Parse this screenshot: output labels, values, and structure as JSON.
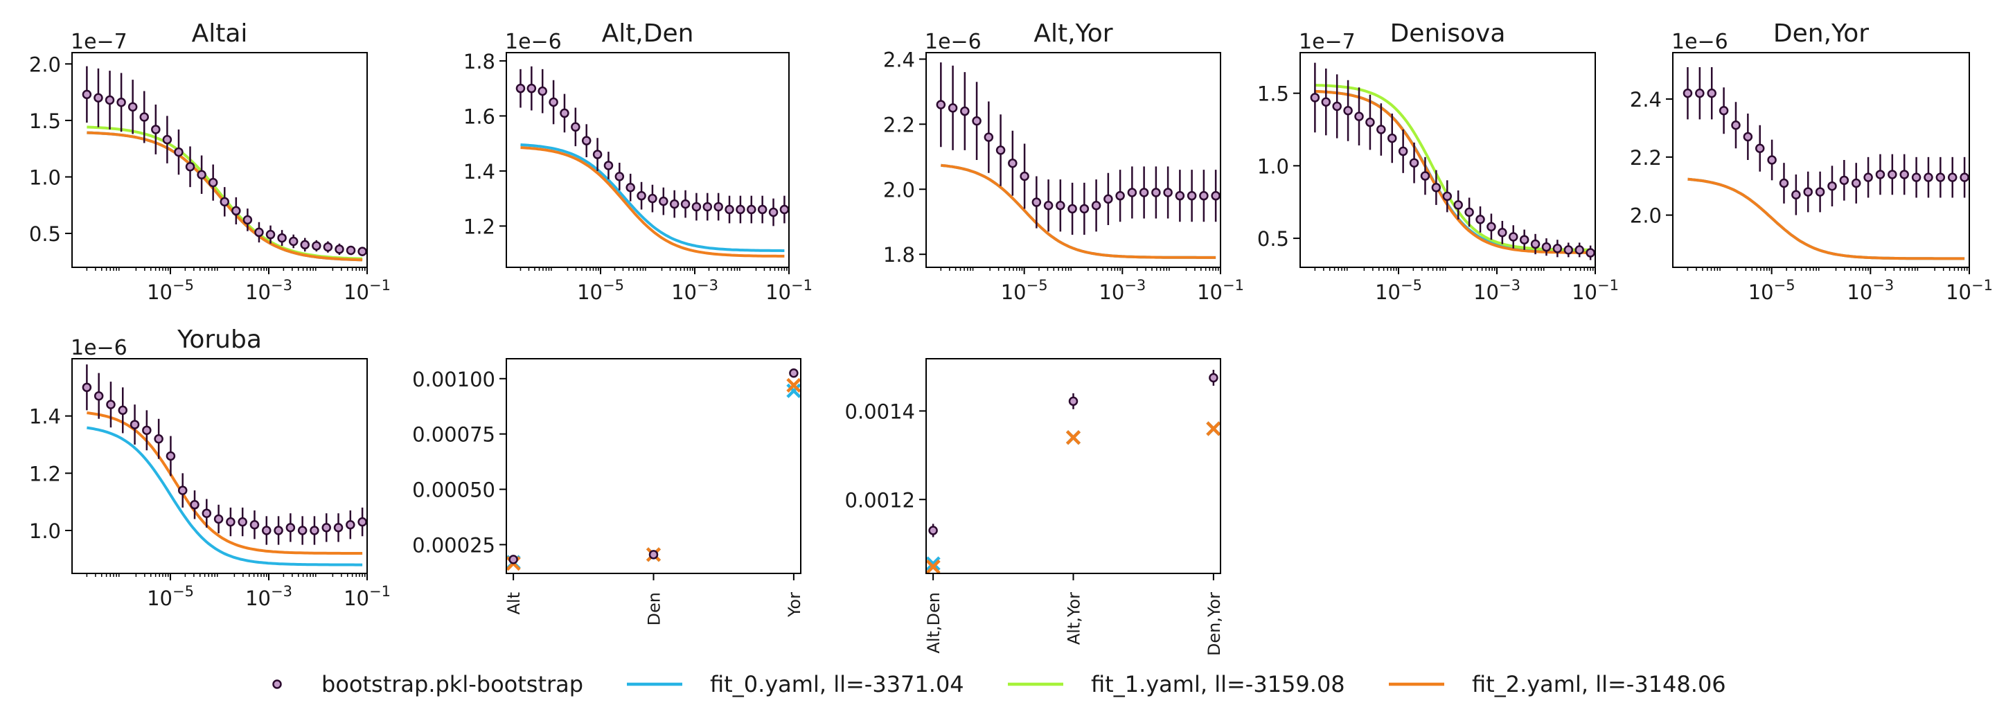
{
  "colors": {
    "data_edge": "#2b0a2e",
    "data_fill": "#c49bc9",
    "fit_0": "#28b4e4",
    "fit_1": "#a6f23a",
    "fit_2": "#f07f1e"
  },
  "legend": {
    "placement": "bottom-center",
    "items": [
      {
        "key": "data",
        "label": "bootstrap.pkl-bootstrap"
      },
      {
        "key": "fit_0",
        "label": "fit_0.yaml, ll=-3371.04"
      },
      {
        "key": "fit_1",
        "label": "fit_1.yaml, ll=-3159.08"
      },
      {
        "key": "fit_2",
        "label": "fit_2.yaml, ll=-3148.06"
      }
    ]
  },
  "chart_data": [
    {
      "type": "line",
      "title": "Altai",
      "offset_label": "1e−7",
      "x_scale": "log",
      "xlim": [
        1e-07,
        0.1
      ],
      "ylim": [
        0.2,
        2.1
      ],
      "xticks": [
        {
          "v": 1e-05,
          "b": "10",
          "e": "−5"
        },
        {
          "v": 0.001,
          "b": "10",
          "e": "−3"
        },
        {
          "v": 0.1,
          "b": "10",
          "e": "−1"
        }
      ],
      "yticks": [
        {
          "v": 0.5,
          "label": "0.5"
        },
        {
          "v": 1.0,
          "label": "1.0"
        },
        {
          "v": 1.5,
          "label": "1.5"
        },
        {
          "v": 2.0,
          "label": "2.0"
        }
      ],
      "points": {
        "y": [
          1.73,
          1.7,
          1.68,
          1.66,
          1.62,
          1.53,
          1.42,
          1.33,
          1.22,
          1.09,
          1.02,
          0.95,
          0.78,
          0.7,
          0.62,
          0.51,
          0.49,
          0.46,
          0.43,
          0.4,
          0.39,
          0.38,
          0.36,
          0.35,
          0.34
        ],
        "err": [
          0.25,
          0.26,
          0.26,
          0.26,
          0.24,
          0.23,
          0.22,
          0.21,
          0.2,
          0.18,
          0.17,
          0.16,
          0.13,
          0.12,
          0.1,
          0.09,
          0.08,
          0.07,
          0.06,
          0.06,
          0.05,
          0.05,
          0.05,
          0.04,
          0.04
        ]
      },
      "curves": [
        {
          "key": "fit_0",
          "top": 1.4,
          "bottom": 0.26,
          "mid_log": -4.0,
          "width": 0.55
        },
        {
          "key": "fit_1",
          "top": 1.45,
          "bottom": 0.27,
          "mid_log": -4.0,
          "width": 0.55
        },
        {
          "key": "fit_2",
          "top": 1.4,
          "bottom": 0.26,
          "mid_log": -4.0,
          "width": 0.55
        }
      ]
    },
    {
      "type": "line",
      "title": "Alt,Den",
      "offset_label": "1e−6",
      "x_scale": "log",
      "xlim": [
        1e-07,
        0.1
      ],
      "ylim": [
        1.05,
        1.83
      ],
      "xticks": [
        {
          "v": 1e-05,
          "b": "10",
          "e": "−5"
        },
        {
          "v": 0.001,
          "b": "10",
          "e": "−3"
        },
        {
          "v": 0.1,
          "b": "10",
          "e": "−1"
        }
      ],
      "yticks": [
        {
          "v": 1.2,
          "label": "1.2"
        },
        {
          "v": 1.4,
          "label": "1.4"
        },
        {
          "v": 1.6,
          "label": "1.6"
        },
        {
          "v": 1.8,
          "label": "1.8"
        }
      ],
      "points": {
        "y": [
          1.7,
          1.7,
          1.69,
          1.65,
          1.61,
          1.56,
          1.51,
          1.46,
          1.42,
          1.38,
          1.34,
          1.31,
          1.3,
          1.29,
          1.28,
          1.28,
          1.27,
          1.27,
          1.27,
          1.26,
          1.26,
          1.26,
          1.26,
          1.25,
          1.26
        ],
        "err": [
          0.07,
          0.08,
          0.08,
          0.08,
          0.07,
          0.07,
          0.06,
          0.06,
          0.05,
          0.05,
          0.05,
          0.05,
          0.05,
          0.05,
          0.05,
          0.05,
          0.05,
          0.05,
          0.05,
          0.05,
          0.05,
          0.05,
          0.05,
          0.05,
          0.05
        ]
      },
      "curves": [
        {
          "key": "fit_0",
          "top": 1.5,
          "bottom": 1.11,
          "mid_log": -4.5,
          "width": 0.5
        },
        {
          "key": "fit_2",
          "top": 1.49,
          "bottom": 1.09,
          "mid_log": -4.5,
          "width": 0.5
        }
      ]
    },
    {
      "type": "line",
      "title": "Alt,Yor",
      "offset_label": "1e−6",
      "x_scale": "log",
      "xlim": [
        1e-07,
        0.1
      ],
      "ylim": [
        1.76,
        2.42
      ],
      "xticks": [
        {
          "v": 1e-05,
          "b": "10",
          "e": "−5"
        },
        {
          "v": 0.001,
          "b": "10",
          "e": "−3"
        },
        {
          "v": 0.1,
          "b": "10",
          "e": "−1"
        }
      ],
      "yticks": [
        {
          "v": 1.8,
          "label": "1.8"
        },
        {
          "v": 2.0,
          "label": "2.0"
        },
        {
          "v": 2.2,
          "label": "2.2"
        },
        {
          "v": 2.4,
          "label": "2.4"
        }
      ],
      "points": {
        "y": [
          2.26,
          2.25,
          2.24,
          2.21,
          2.16,
          2.12,
          2.08,
          2.04,
          1.96,
          1.95,
          1.95,
          1.94,
          1.94,
          1.95,
          1.97,
          1.98,
          1.99,
          1.99,
          1.99,
          1.99,
          1.98,
          1.98,
          1.98,
          1.98
        ],
        "err": [
          0.13,
          0.13,
          0.12,
          0.12,
          0.11,
          0.11,
          0.1,
          0.1,
          0.08,
          0.08,
          0.08,
          0.08,
          0.08,
          0.08,
          0.08,
          0.08,
          0.08,
          0.08,
          0.08,
          0.08,
          0.08,
          0.08,
          0.08,
          0.08
        ]
      },
      "curves": [
        {
          "key": "fit_0",
          "top": 2.08,
          "bottom": 1.79,
          "mid_log": -5.0,
          "width": 0.45
        },
        {
          "key": "fit_2",
          "top": 2.08,
          "bottom": 1.79,
          "mid_log": -5.0,
          "width": 0.45
        }
      ]
    },
    {
      "type": "line",
      "title": "Denisova",
      "offset_label": "1e−7",
      "x_scale": "log",
      "xlim": [
        1e-07,
        0.1
      ],
      "ylim": [
        0.3,
        1.78
      ],
      "xticks": [
        {
          "v": 1e-05,
          "b": "10",
          "e": "−5"
        },
        {
          "v": 0.001,
          "b": "10",
          "e": "−3"
        },
        {
          "v": 0.1,
          "b": "10",
          "e": "−1"
        }
      ],
      "yticks": [
        {
          "v": 0.5,
          "label": "0.5"
        },
        {
          "v": 1.0,
          "label": "1.0"
        },
        {
          "v": 1.5,
          "label": "1.5"
        }
      ],
      "points": {
        "y": [
          1.47,
          1.44,
          1.41,
          1.38,
          1.34,
          1.3,
          1.25,
          1.19,
          1.1,
          1.02,
          0.93,
          0.85,
          0.79,
          0.73,
          0.68,
          0.63,
          0.58,
          0.54,
          0.51,
          0.49,
          0.46,
          0.44,
          0.43,
          0.42,
          0.42,
          0.4
        ],
        "err": [
          0.24,
          0.23,
          0.22,
          0.21,
          0.2,
          0.19,
          0.18,
          0.17,
          0.15,
          0.14,
          0.13,
          0.12,
          0.11,
          0.1,
          0.1,
          0.09,
          0.09,
          0.08,
          0.08,
          0.07,
          0.07,
          0.06,
          0.06,
          0.05,
          0.05,
          0.05
        ]
      },
      "curves": [
        {
          "key": "fit_0",
          "top": 1.52,
          "bottom": 0.41,
          "mid_log": -4.4,
          "width": 0.45
        },
        {
          "key": "fit_1",
          "top": 1.56,
          "bottom": 0.42,
          "mid_log": -4.3,
          "width": 0.43
        },
        {
          "key": "fit_2",
          "top": 1.52,
          "bottom": 0.4,
          "mid_log": -4.4,
          "width": 0.45
        }
      ]
    },
    {
      "type": "line",
      "title": "Den,Yor",
      "offset_label": "1e−6",
      "x_scale": "log",
      "xlim": [
        1e-07,
        0.1
      ],
      "ylim": [
        1.82,
        2.56
      ],
      "xticks": [
        {
          "v": 1e-05,
          "b": "10",
          "e": "−5"
        },
        {
          "v": 0.001,
          "b": "10",
          "e": "−3"
        },
        {
          "v": 0.1,
          "b": "10",
          "e": "−1"
        }
      ],
      "yticks": [
        {
          "v": 2.0,
          "label": "2.0"
        },
        {
          "v": 2.2,
          "label": "2.2"
        },
        {
          "v": 2.4,
          "label": "2.4"
        }
      ],
      "points": {
        "y": [
          2.42,
          2.42,
          2.42,
          2.36,
          2.31,
          2.27,
          2.23,
          2.19,
          2.11,
          2.07,
          2.08,
          2.08,
          2.1,
          2.12,
          2.11,
          2.13,
          2.14,
          2.14,
          2.14,
          2.13,
          2.13,
          2.13,
          2.13,
          2.13
        ],
        "err": [
          0.09,
          0.09,
          0.09,
          0.08,
          0.08,
          0.08,
          0.08,
          0.07,
          0.07,
          0.07,
          0.07,
          0.07,
          0.07,
          0.07,
          0.07,
          0.07,
          0.07,
          0.07,
          0.07,
          0.07,
          0.07,
          0.07,
          0.07,
          0.07
        ]
      },
      "curves": [
        {
          "key": "fit_0",
          "top": 2.13,
          "bottom": 1.85,
          "mid_log": -5.0,
          "width": 0.45
        },
        {
          "key": "fit_2",
          "top": 2.13,
          "bottom": 1.85,
          "mid_log": -5.0,
          "width": 0.45
        }
      ]
    },
    {
      "type": "line",
      "title": "Yoruba",
      "offset_label": "1e−6",
      "x_scale": "log",
      "xlim": [
        1e-07,
        0.1
      ],
      "ylim": [
        0.85,
        1.6
      ],
      "xticks": [
        {
          "v": 1e-05,
          "b": "10",
          "e": "−5"
        },
        {
          "v": 0.001,
          "b": "10",
          "e": "−3"
        },
        {
          "v": 0.1,
          "b": "10",
          "e": "−1"
        }
      ],
      "yticks": [
        {
          "v": 1.0,
          "label": "1.0"
        },
        {
          "v": 1.2,
          "label": "1.2"
        },
        {
          "v": 1.4,
          "label": "1.4"
        }
      ],
      "points": {
        "y": [
          1.5,
          1.47,
          1.44,
          1.42,
          1.37,
          1.35,
          1.32,
          1.26,
          1.14,
          1.09,
          1.06,
          1.04,
          1.03,
          1.03,
          1.02,
          1.0,
          1.0,
          1.01,
          1.0,
          1.0,
          1.01,
          1.01,
          1.02,
          1.03
        ],
        "err": [
          0.08,
          0.08,
          0.08,
          0.08,
          0.07,
          0.07,
          0.07,
          0.07,
          0.06,
          0.05,
          0.05,
          0.05,
          0.05,
          0.05,
          0.05,
          0.05,
          0.05,
          0.05,
          0.05,
          0.05,
          0.05,
          0.05,
          0.05,
          0.05
        ]
      },
      "curves": [
        {
          "key": "fit_0",
          "top": 1.37,
          "bottom": 0.88,
          "mid_log": -5.0,
          "width": 0.45
        },
        {
          "key": "fit_2",
          "top": 1.42,
          "bottom": 0.92,
          "mid_log": -4.9,
          "width": 0.45
        }
      ]
    },
    {
      "type": "scatter",
      "title": "",
      "offset_label": "",
      "categories": [
        "Alt",
        "Den",
        "Yor"
      ],
      "xlim": [
        -0.05,
        2.05
      ],
      "ylim": [
        0.00012,
        0.00109
      ],
      "yticks": [
        {
          "v": 0.00025,
          "label": "0.00025"
        },
        {
          "v": 0.0005,
          "label": "0.00050"
        },
        {
          "v": 0.00075,
          "label": "0.00075"
        },
        {
          "v": 0.001,
          "label": "0.00100"
        }
      ],
      "points": {
        "y": [
          0.000183,
          0.000205,
          0.001025
        ],
        "err": [
          7e-06,
          8e-06,
          1e-05
        ]
      },
      "markers": [
        {
          "key": "fit_0",
          "values": [
            0.00017,
            0.000205,
            0.000945
          ]
        },
        {
          "key": "fit_2",
          "values": [
            0.000165,
            0.000205,
            0.00097
          ]
        }
      ]
    },
    {
      "type": "scatter",
      "title": "",
      "offset_label": "",
      "categories": [
        "Alt,Den",
        "Alt,Yor",
        "Den,Yor"
      ],
      "xlim": [
        -0.05,
        2.05
      ],
      "ylim": [
        0.001033,
        0.001518
      ],
      "yticks": [
        {
          "v": 0.0012,
          "label": "0.0012"
        },
        {
          "v": 0.0014,
          "label": "0.0014"
        }
      ],
      "points": {
        "y": [
          0.00113,
          0.001422,
          0.001475
        ],
        "err": [
          1.5e-05,
          1.8e-05,
          1.8e-05
        ]
      },
      "markers": [
        {
          "key": "fit_0",
          "values": [
            0.001055,
            0.00134,
            0.00136
          ]
        },
        {
          "key": "fit_2",
          "values": [
            0.001048,
            0.00134,
            0.00136
          ]
        }
      ]
    }
  ]
}
